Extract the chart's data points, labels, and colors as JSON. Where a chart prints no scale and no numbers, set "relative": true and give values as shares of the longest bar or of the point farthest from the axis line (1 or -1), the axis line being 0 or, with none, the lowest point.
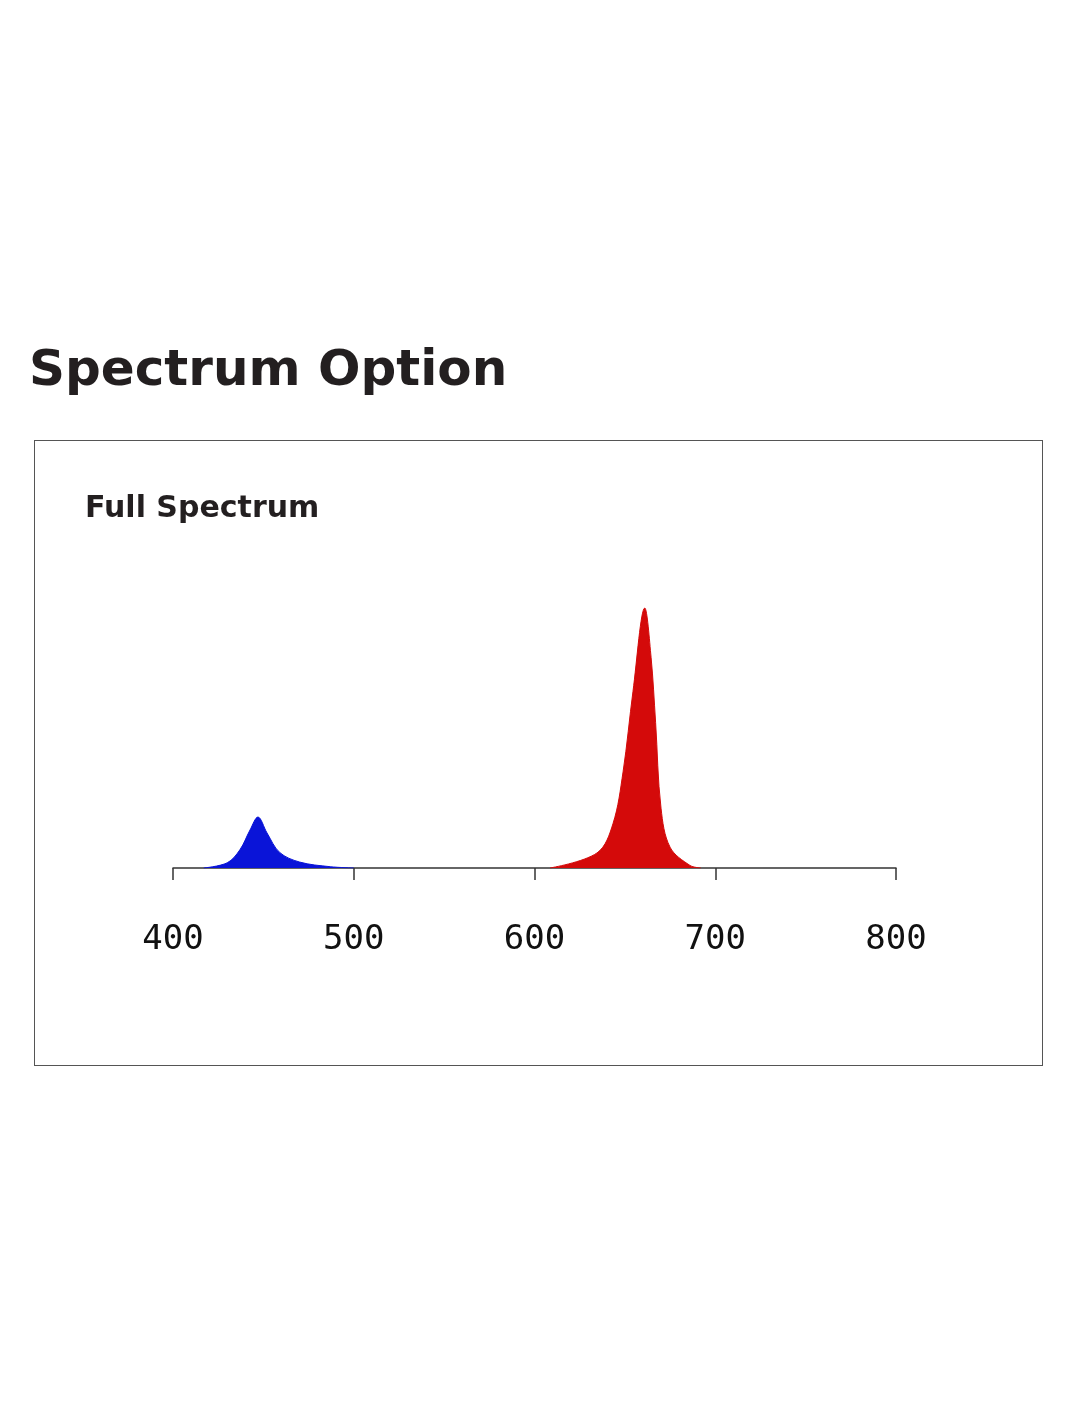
{
  "chart_data": {
    "type": "area",
    "title": "Spectrum Option",
    "subtitle": "Full Spectrum",
    "relative": true,
    "xlim": [
      400,
      800
    ],
    "xticks": [
      400,
      500,
      600,
      700,
      800
    ],
    "series": [
      {
        "color": "#0a14d8",
        "x": [
          417,
          430,
          437,
          442.6,
          447,
          452,
          459,
          470,
          487,
          500
        ],
        "values": [
          0,
          0.02,
          0.07,
          0.146,
          0.196,
          0.135,
          0.06,
          0.023,
          0.005,
          0
        ]
      },
      {
        "color": "#d40a0a",
        "x": [
          608.6,
          634.6,
          643.4,
          649,
          654.5,
          661,
          664.5,
          667,
          670,
          675,
          686,
          692
        ],
        "values": [
          0,
          0.058,
          0.17,
          0.37,
          0.68,
          1,
          0.81,
          0.56,
          0.23,
          0.08,
          0.01,
          0
        ]
      }
    ]
  }
}
